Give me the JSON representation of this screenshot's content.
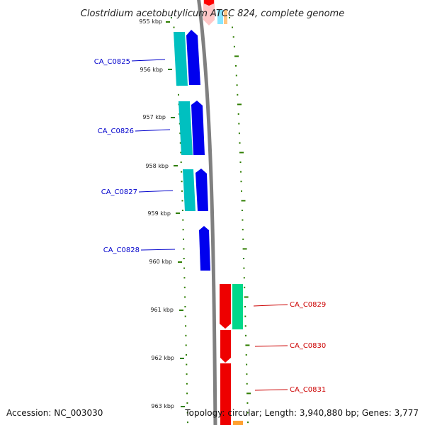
{
  "title": "Clostridium acetobutylicum ATCC 824, complete genome",
  "accession": "Accession: NC_003030",
  "topology": "Topology: circular; Length: 3,940,880 bp; Genes: 3,777",
  "colors": {
    "forward_label": "#0000cc",
    "reverse_label": "#cc0000",
    "backbone": "#808080",
    "tick": "#2e7d00",
    "gene_blue": "#0000ee",
    "gene_cyan": "#00c0c0",
    "gene_red": "#ee0000",
    "gene_green": "#00d88a"
  },
  "ticks": [
    {
      "label": "955 kbp"
    },
    {
      "label": "956 kbp"
    },
    {
      "label": "957 kbp"
    },
    {
      "label": "958 kbp"
    },
    {
      "label": "959 kbp"
    },
    {
      "label": "960 kbp"
    },
    {
      "label": "961 kbp"
    },
    {
      "label": "962 kbp"
    },
    {
      "label": "963 kbp"
    }
  ],
  "genes_forward": [
    {
      "label": "CA_C0825"
    },
    {
      "label": "CA_C0826"
    },
    {
      "label": "CA_C0827"
    },
    {
      "label": "CA_C0828"
    }
  ],
  "genes_reverse": [
    {
      "label": "CA_C0829"
    },
    {
      "label": "CA_C0830"
    },
    {
      "label": "CA_C0831"
    }
  ]
}
